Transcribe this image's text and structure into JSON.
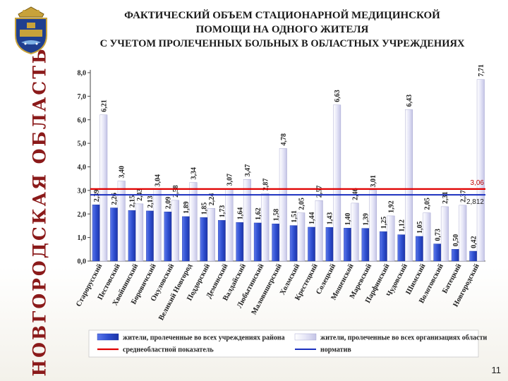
{
  "header": {
    "title_line1": "ФАКТИЧЕСКИЙ ОБЪЕМ СТАЦИОНАРНОЙ МЕДИЦИНСКОЙ",
    "title_line2": "ПОМОЩИ НА ОДНОГО ЖИТЕЛЯ",
    "title_line3": "С УЧЕТОМ ПРОЛЕЧЕННЫХ БОЛЬНЫХ В ОБЛАСТНЫХ УЧРЕЖДЕНИЯХ"
  },
  "sidebar": {
    "region_name": "НОВГОРОДСКАЯ ОБЛАСТЬ"
  },
  "page_number": "11",
  "colors": {
    "series_local": "#2f4fd0",
    "series_region": "#e6e6f7",
    "avg_line": "#e00000",
    "norm_line": "#1a2fbf",
    "sidebar_title": "#8b1a1a"
  },
  "chart_data": {
    "type": "bar",
    "categories": [
      "Старорусский",
      "Пестовский",
      "Хвойнинский",
      "Боровичский",
      "Окуловский",
      "Великий Новгород",
      "Поддорский",
      "Демянский",
      "Валдайский",
      "Любытинский",
      "Маловишерский",
      "Холмский",
      "Крестецкий",
      "Солецкий",
      "Мошенской",
      "Маревский",
      "Парфинский",
      "Чудовский",
      "Шимский",
      "Волотовский",
      "Батецкий",
      "Новгородский"
    ],
    "series": [
      {
        "name": "жители, пролеченные во всех учреждениях района",
        "values": [
          2.39,
          2.26,
          2.15,
          2.13,
          2.09,
          1.89,
          1.85,
          1.73,
          1.64,
          1.62,
          1.58,
          1.51,
          1.44,
          1.43,
          1.4,
          1.39,
          1.25,
          1.12,
          1.05,
          0.73,
          0.5,
          0.42
        ],
        "value_labels": [
          "2,39",
          "2,26",
          "2,15",
          "2,13",
          "2,09",
          "1,89",
          "1,85",
          "1,73",
          "1,64",
          "1,62",
          "1,58",
          "1,51",
          "1,44",
          "1,43",
          "1,40",
          "1,39",
          "1,25",
          "1,12",
          "1,05",
          "0,73",
          "0,50",
          "0,42"
        ]
      },
      {
        "name": "жители, пролеченные во всех организациях области",
        "values": [
          6.21,
          3.4,
          2.43,
          3.04,
          2.58,
          3.34,
          2.24,
          3.07,
          3.47,
          2.87,
          4.78,
          2.05,
          2.57,
          6.63,
          2.46,
          3.01,
          1.92,
          6.43,
          2.05,
          2.31,
          2.37,
          7.71
        ],
        "value_labels": [
          "6,21",
          "3,40",
          "2,43",
          "3,04",
          "2,58",
          "3,34",
          "2,24",
          "3,07",
          "3,47",
          "2,87",
          "4,78",
          "2,05",
          "2,57",
          "6,63",
          "2,46",
          "3,01",
          "1,92",
          "6,43",
          "2,05",
          "2,31",
          "2,37",
          "7,71"
        ]
      }
    ],
    "reference_lines": [
      {
        "name": "среднеобластной показатель",
        "value": 3.06,
        "label": "3,06"
      },
      {
        "name": "норматив",
        "value": 2.812,
        "label": "2,812"
      }
    ],
    "ylim": [
      0,
      8
    ],
    "yticks": [
      0,
      1,
      2,
      3,
      4,
      5,
      6,
      7,
      8
    ],
    "ytick_labels": [
      "0,0",
      "1,0",
      "2,0",
      "3,0",
      "4,0",
      "5,0",
      "6,0",
      "7,0",
      "8,0"
    ],
    "legend": [
      {
        "label": "жители, пролеченные во всех учреждениях района",
        "kind": "bar-local"
      },
      {
        "label": "жители, пролеченные во всех организациях области",
        "kind": "bar-region"
      },
      {
        "label": "среднеобластной показатель",
        "kind": "line-avg"
      },
      {
        "label": "норматив",
        "kind": "line-norm"
      }
    ],
    "legend_position": "bottom",
    "grid": false
  }
}
